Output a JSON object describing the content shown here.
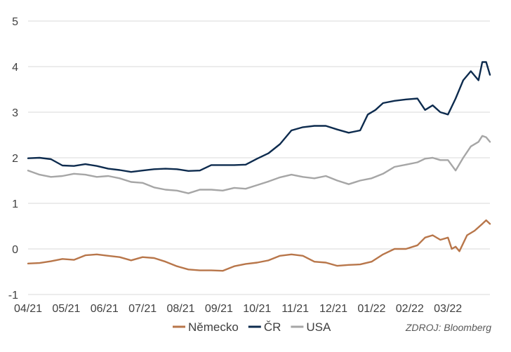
{
  "chart_data": {
    "type": "line",
    "title": "",
    "xlabel": "",
    "ylabel": "",
    "ylim": [
      -1,
      5
    ],
    "yticks": [
      -1,
      0,
      1,
      2,
      3,
      4,
      5
    ],
    "grid": true,
    "legend_position": "bottom",
    "x_tick_labels": [
      "04/21",
      "05/21",
      "06/21",
      "07/21",
      "08/21",
      "09/21",
      "10/21",
      "11/21",
      "12/21",
      "01/22",
      "02/22",
      "03/22"
    ],
    "x_months": [
      0,
      1,
      2,
      3,
      4,
      5,
      6,
      7,
      8,
      9,
      10,
      11
    ],
    "x_max": 12.1,
    "source": "ZDROJ: Bloomberg",
    "series": [
      {
        "name": "Německo",
        "color": "#b8764a",
        "x": [
          0,
          0.3,
          0.6,
          0.9,
          1.2,
          1.5,
          1.8,
          2.1,
          2.4,
          2.7,
          3.0,
          3.3,
          3.6,
          3.9,
          4.2,
          4.5,
          4.8,
          5.1,
          5.4,
          5.7,
          6.0,
          6.3,
          6.6,
          6.9,
          7.2,
          7.5,
          7.8,
          8.1,
          8.4,
          8.7,
          9.0,
          9.3,
          9.6,
          9.9,
          10.2,
          10.4,
          10.6,
          10.8,
          11.0,
          11.1,
          11.2,
          11.3,
          11.5,
          11.7,
          11.9,
          12.0,
          12.1
        ],
        "y": [
          -0.32,
          -0.31,
          -0.27,
          -0.22,
          -0.24,
          -0.14,
          -0.12,
          -0.15,
          -0.18,
          -0.25,
          -0.18,
          -0.2,
          -0.28,
          -0.38,
          -0.45,
          -0.47,
          -0.47,
          -0.48,
          -0.38,
          -0.33,
          -0.3,
          -0.25,
          -0.15,
          -0.12,
          -0.15,
          -0.28,
          -0.3,
          -0.37,
          -0.35,
          -0.34,
          -0.28,
          -0.12,
          0.0,
          0.0,
          0.08,
          0.25,
          0.3,
          0.2,
          0.25,
          0.0,
          0.05,
          -0.05,
          0.3,
          0.4,
          0.55,
          0.63,
          0.55
        ]
      },
      {
        "name": "ČR",
        "color": "#0d2b4e",
        "x": [
          0,
          0.3,
          0.6,
          0.9,
          1.2,
          1.5,
          1.8,
          2.1,
          2.4,
          2.7,
          3.0,
          3.3,
          3.6,
          3.9,
          4.2,
          4.5,
          4.8,
          5.1,
          5.4,
          5.7,
          6.0,
          6.3,
          6.6,
          6.9,
          7.2,
          7.5,
          7.8,
          8.1,
          8.4,
          8.7,
          8.9,
          9.1,
          9.3,
          9.6,
          9.9,
          10.2,
          10.4,
          10.6,
          10.8,
          11.0,
          11.2,
          11.4,
          11.6,
          11.8,
          11.9,
          12.0,
          12.1
        ],
        "y": [
          1.99,
          2.0,
          1.97,
          1.83,
          1.82,
          1.86,
          1.82,
          1.76,
          1.73,
          1.69,
          1.72,
          1.75,
          1.76,
          1.75,
          1.71,
          1.72,
          1.84,
          1.84,
          1.84,
          1.85,
          1.98,
          2.1,
          2.3,
          2.6,
          2.67,
          2.7,
          2.7,
          2.62,
          2.55,
          2.6,
          2.95,
          3.05,
          3.2,
          3.25,
          3.28,
          3.3,
          3.05,
          3.15,
          3.0,
          2.95,
          3.3,
          3.7,
          3.9,
          3.7,
          4.1,
          4.1,
          3.82
        ]
      },
      {
        "name": "USA",
        "color": "#a6a6a6",
        "x": [
          0,
          0.3,
          0.6,
          0.9,
          1.2,
          1.5,
          1.8,
          2.1,
          2.4,
          2.7,
          3.0,
          3.3,
          3.6,
          3.9,
          4.2,
          4.5,
          4.8,
          5.1,
          5.4,
          5.7,
          6.0,
          6.3,
          6.6,
          6.9,
          7.2,
          7.5,
          7.8,
          8.1,
          8.4,
          8.7,
          9.0,
          9.3,
          9.6,
          9.9,
          10.2,
          10.4,
          10.6,
          10.8,
          11.0,
          11.2,
          11.4,
          11.6,
          11.8,
          11.9,
          12.0,
          12.1
        ],
        "y": [
          1.72,
          1.63,
          1.58,
          1.6,
          1.65,
          1.63,
          1.58,
          1.6,
          1.55,
          1.47,
          1.45,
          1.35,
          1.3,
          1.28,
          1.22,
          1.3,
          1.3,
          1.28,
          1.34,
          1.32,
          1.4,
          1.48,
          1.57,
          1.63,
          1.58,
          1.55,
          1.6,
          1.5,
          1.42,
          1.5,
          1.55,
          1.65,
          1.8,
          1.85,
          1.9,
          1.98,
          2.0,
          1.95,
          1.95,
          1.72,
          2.0,
          2.25,
          2.35,
          2.48,
          2.45,
          2.35
        ]
      }
    ]
  }
}
